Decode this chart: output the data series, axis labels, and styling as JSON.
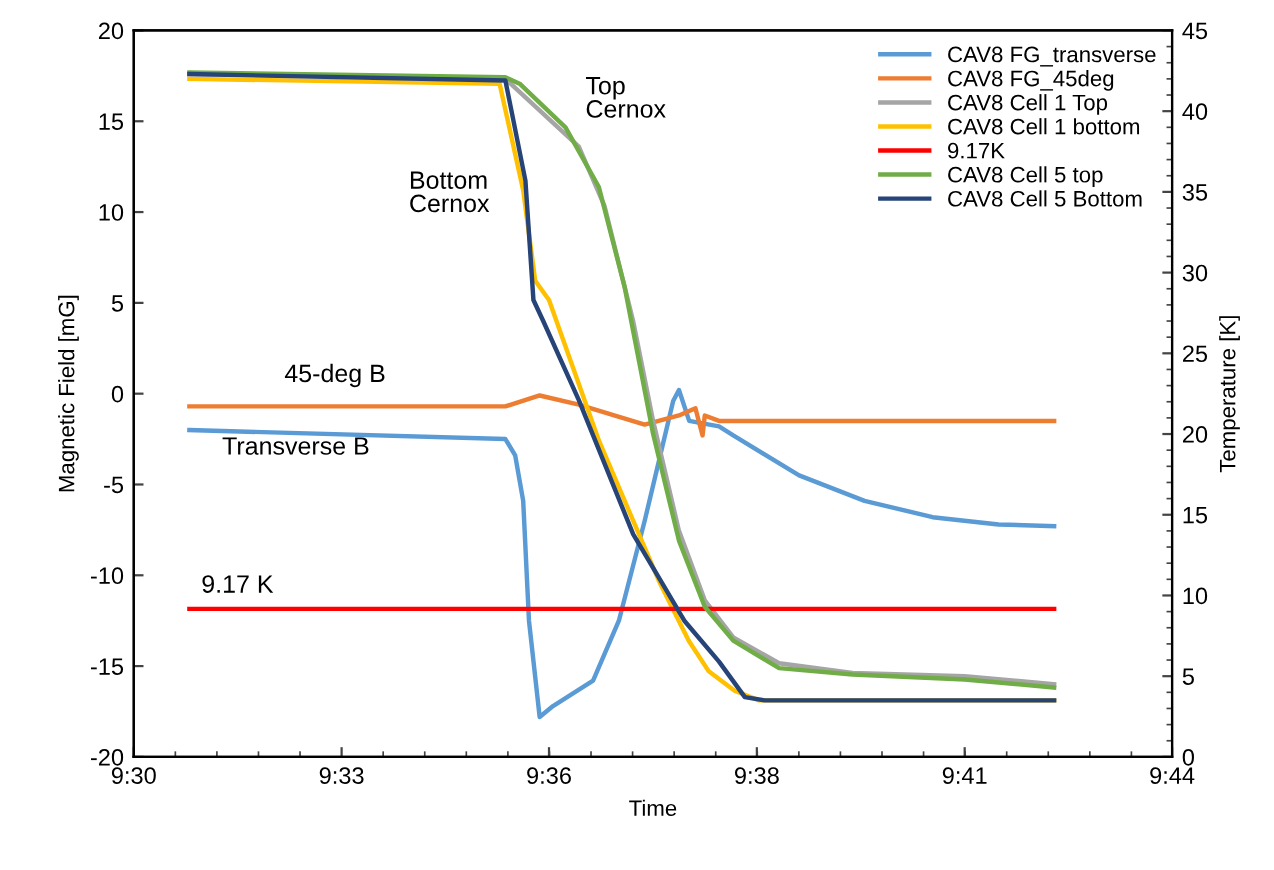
{
  "chart_data": {
    "type": "line",
    "xlabel": "Time",
    "ylabel": "Magnetic Field [mG]",
    "y2label": "Temperature [K]",
    "xlim": [
      9.5,
      9.7333
    ],
    "xticks": [
      {
        "value": 9.5,
        "label": "9:30"
      },
      {
        "value": 9.5467,
        "label": "9:33"
      },
      {
        "value": 9.5933,
        "label": "9:36"
      },
      {
        "value": 9.64,
        "label": "9:38"
      },
      {
        "value": 9.6867,
        "label": "9:41"
      },
      {
        "value": 9.7333,
        "label": "9:44"
      }
    ],
    "ylim": [
      -20,
      20
    ],
    "yticks": [
      -20,
      -15,
      -10,
      -5,
      0,
      5,
      10,
      15,
      20
    ],
    "y2lim": [
      0,
      45
    ],
    "y2ticks": [
      0,
      5,
      10,
      15,
      20,
      25,
      30,
      35,
      40,
      45
    ],
    "grid": false,
    "legend": "top right",
    "line_style": "solid",
    "marker": "none",
    "series": [
      {
        "name": "CAV8 FG_transverse",
        "color": "#5b9bd5",
        "x": [
          9.5125,
          9.5835,
          9.5857,
          9.5875,
          9.5888,
          9.5912,
          9.5942,
          9.6032,
          9.609,
          9.6148,
          9.6212,
          9.6225,
          9.6248,
          9.6315,
          9.6347,
          9.6495,
          9.6642,
          9.6795,
          9.6943,
          9.7068
        ],
        "values": [
          -2.0,
          -2.5,
          -3.4,
          -5.9,
          -12.5,
          -17.8,
          -17.2,
          -15.8,
          -12.5,
          -7.0,
          -0.4,
          0.2,
          -1.5,
          -1.8,
          -2.3,
          -4.5,
          -5.9,
          -6.8,
          -7.2,
          -7.3
        ]
      },
      {
        "name": "CAV8 FG_45deg",
        "color": "#ed7d31",
        "x": [
          9.5125,
          9.5835,
          9.5912,
          9.6,
          9.6148,
          9.6225,
          9.6262,
          9.6278,
          9.6283,
          9.6315,
          9.7068
        ],
        "values": [
          -0.7,
          -0.7,
          -0.1,
          -0.6,
          -1.7,
          -1.2,
          -0.8,
          -2.3,
          -1.2,
          -1.5,
          -1.5
        ]
      },
      {
        "name": "CAV8 Cell 1 Top",
        "color": "#a5a5a5",
        "axis": "y2",
        "x": [
          9.5125,
          9.5835,
          9.6,
          9.6058,
          9.6122,
          9.6167,
          9.6225,
          9.6283,
          9.6347,
          9.645,
          9.6615,
          9.6867,
          9.7068
        ],
        "values": [
          42.3,
          42.0,
          37.8,
          34.1,
          27.0,
          20.8,
          14.0,
          9.7,
          7.4,
          5.8,
          5.2,
          5.0,
          4.5
        ]
      },
      {
        "name": "CAV8 Cell 1 bottom",
        "color": "#ffc000",
        "axis": "y2",
        "x": [
          9.5125,
          9.5822,
          9.5875,
          9.5902,
          9.5933,
          9.6045,
          9.618,
          9.6247,
          9.6292,
          9.635,
          9.6405,
          9.7068
        ],
        "values": [
          42.0,
          41.7,
          35.1,
          29.5,
          28.3,
          19.6,
          10.9,
          7.2,
          5.3,
          4.1,
          3.5,
          3.5
        ]
      },
      {
        "name": "9.17K",
        "color": "#ff0000",
        "axis": "y2",
        "x": [
          9.5125,
          9.7068
        ],
        "values": [
          9.17,
          9.17
        ]
      },
      {
        "name": "CAV8 Cell 5 top",
        "color": "#70ad47",
        "axis": "y2",
        "x": [
          9.5125,
          9.5835,
          9.5867,
          9.597,
          9.6045,
          9.6103,
          9.6167,
          9.6225,
          9.6283,
          9.6347,
          9.645,
          9.6615,
          9.6867,
          9.7068
        ],
        "values": [
          42.4,
          42.1,
          41.7,
          39.0,
          35.3,
          29.1,
          20.0,
          13.4,
          9.3,
          7.2,
          5.5,
          5.1,
          4.8,
          4.3
        ]
      },
      {
        "name": "CAV8 Cell 5 Bottom",
        "color": "#264478",
        "axis": "y2",
        "x": [
          9.5125,
          9.5835,
          9.588,
          9.5898,
          9.592,
          9.6,
          9.6122,
          9.6238,
          9.6315,
          9.6373,
          9.6418,
          9.7068
        ],
        "values": [
          42.3,
          41.9,
          35.7,
          28.3,
          27.0,
          22.1,
          13.8,
          8.4,
          5.9,
          3.7,
          3.5,
          3.5
        ]
      }
    ],
    "annotations": [
      "Top\nCernox",
      "Bottom\nCernox",
      "45-deg B",
      "Transverse B",
      "9.17 K"
    ]
  }
}
